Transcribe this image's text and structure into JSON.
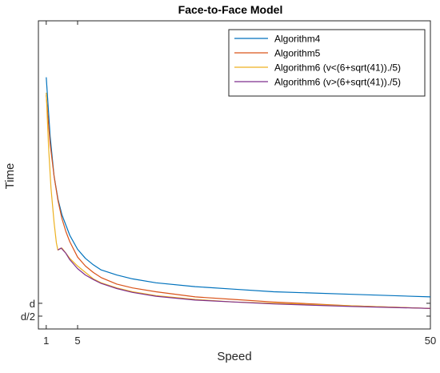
{
  "chart_data": {
    "type": "line",
    "title": "Face-to-Face Model",
    "xlabel": "Speed",
    "ylabel": "Time",
    "xlim": [
      0,
      50
    ],
    "ylim": [
      0,
      24
    ],
    "x_ticks": [
      {
        "value": 1,
        "label": "1"
      },
      {
        "value": 5,
        "label": "5"
      },
      {
        "value": 50,
        "label": "50"
      }
    ],
    "y_ticks": [
      {
        "value": 1.0,
        "label": "d/2"
      },
      {
        "value": 2.0,
        "label": "d"
      }
    ],
    "grid": false,
    "legend_position": "top-right",
    "series": [
      {
        "name": "Algorithm4",
        "color": "#0072BD",
        "x": [
          1,
          1.5,
          2,
          2.5,
          3,
          3.5,
          4,
          5,
          6,
          7,
          8,
          10,
          12,
          15,
          20,
          25,
          30,
          40,
          50
        ],
        "y": [
          19.6,
          15.0,
          11.9,
          10.1,
          8.9,
          8.1,
          7.3,
          6.2,
          5.5,
          5.0,
          4.6,
          4.2,
          3.9,
          3.6,
          3.3,
          3.1,
          2.9,
          2.7,
          2.5
        ]
      },
      {
        "name": "Algorithm5",
        "color": "#D95319",
        "x": [
          1,
          1.5,
          2,
          2.5,
          3,
          3.5,
          4,
          5,
          6,
          7,
          8,
          10,
          12,
          15,
          20,
          25,
          30,
          40,
          50
        ],
        "y": [
          18.2,
          14.4,
          11.9,
          10.0,
          8.6,
          7.6,
          6.8,
          5.6,
          4.9,
          4.4,
          4.0,
          3.5,
          3.2,
          2.9,
          2.5,
          2.3,
          2.1,
          1.8,
          1.6
        ]
      },
      {
        "name": "Algorithm6 (v<(6+sqrt(41))./5)",
        "color": "#EDB120",
        "x": [
          1,
          1.3,
          1.6,
          2.0,
          2.3,
          2.48,
          3,
          4,
          5,
          6,
          7,
          8,
          10,
          12,
          15,
          20,
          25,
          30,
          40,
          50
        ],
        "y": [
          18.4,
          14.2,
          11.0,
          8.3,
          6.7,
          6.15,
          6.3,
          5.5,
          4.9,
          4.4,
          3.9,
          3.6,
          3.2,
          2.9,
          2.6,
          2.3,
          2.1,
          2.0,
          1.8,
          1.6
        ]
      },
      {
        "name": "Algorithm6 (v>(6+sqrt(41))./5)",
        "color": "#7E2F8E",
        "x": [
          2.48,
          2.9,
          3.5,
          4,
          5,
          6,
          7,
          8,
          10,
          12,
          15,
          20,
          25,
          30,
          40,
          50
        ],
        "y": [
          6.15,
          6.3,
          5.9,
          5.4,
          4.7,
          4.2,
          3.85,
          3.55,
          3.15,
          2.85,
          2.55,
          2.25,
          2.1,
          1.95,
          1.75,
          1.6
        ]
      }
    ]
  }
}
